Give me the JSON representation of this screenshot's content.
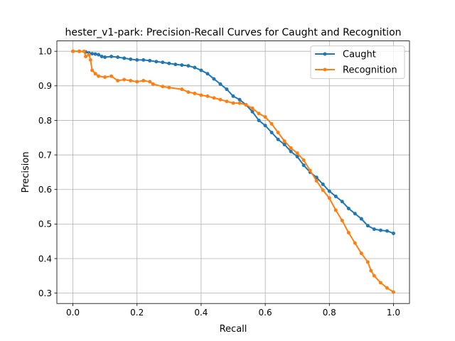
{
  "chart_data": {
    "type": "line",
    "title": "hester_v1-park: Precision-Recall Curves for Caught and Recognition",
    "xlabel": "Recall",
    "ylabel": "Precision",
    "xlim": [
      -0.05,
      1.05
    ],
    "ylim": [
      0.27,
      1.03
    ],
    "xticks": [
      0.0,
      0.2,
      0.4,
      0.6,
      0.8,
      1.0
    ],
    "xtick_labels": [
      "0.0",
      "0.2",
      "0.4",
      "0.6",
      "0.8",
      "1.0"
    ],
    "yticks": [
      0.3,
      0.4,
      0.5,
      0.6,
      0.7,
      0.8,
      0.9,
      1.0
    ],
    "ytick_labels": [
      "0.3",
      "0.4",
      "0.5",
      "0.6",
      "0.7",
      "0.8",
      "0.9",
      "1.0"
    ],
    "grid": true,
    "legend_position": "top-right",
    "series": [
      {
        "name": "Caught",
        "color": "#1f77b4",
        "marker": "circle",
        "points": [
          [
            0.0,
            1.0
          ],
          [
            0.02,
            1.0
          ],
          [
            0.04,
            0.998
          ],
          [
            0.05,
            0.995
          ],
          [
            0.06,
            0.993
          ],
          [
            0.07,
            0.992
          ],
          [
            0.08,
            0.99
          ],
          [
            0.09,
            0.985
          ],
          [
            0.1,
            0.983
          ],
          [
            0.12,
            0.985
          ],
          [
            0.14,
            0.983
          ],
          [
            0.16,
            0.98
          ],
          [
            0.18,
            0.977
          ],
          [
            0.2,
            0.975
          ],
          [
            0.22,
            0.975
          ],
          [
            0.24,
            0.973
          ],
          [
            0.26,
            0.97
          ],
          [
            0.28,
            0.968
          ],
          [
            0.3,
            0.965
          ],
          [
            0.32,
            0.962
          ],
          [
            0.34,
            0.96
          ],
          [
            0.36,
            0.958
          ],
          [
            0.38,
            0.953
          ],
          [
            0.4,
            0.945
          ],
          [
            0.42,
            0.935
          ],
          [
            0.44,
            0.92
          ],
          [
            0.46,
            0.905
          ],
          [
            0.48,
            0.89
          ],
          [
            0.5,
            0.87
          ],
          [
            0.52,
            0.86
          ],
          [
            0.54,
            0.845
          ],
          [
            0.56,
            0.825
          ],
          [
            0.58,
            0.8
          ],
          [
            0.6,
            0.785
          ],
          [
            0.62,
            0.765
          ],
          [
            0.64,
            0.745
          ],
          [
            0.66,
            0.73
          ],
          [
            0.68,
            0.71
          ],
          [
            0.7,
            0.695
          ],
          [
            0.72,
            0.67
          ],
          [
            0.74,
            0.65
          ],
          [
            0.76,
            0.635
          ],
          [
            0.78,
            0.615
          ],
          [
            0.8,
            0.595
          ],
          [
            0.82,
            0.58
          ],
          [
            0.84,
            0.565
          ],
          [
            0.86,
            0.545
          ],
          [
            0.88,
            0.53
          ],
          [
            0.9,
            0.515
          ],
          [
            0.92,
            0.495
          ],
          [
            0.94,
            0.485
          ],
          [
            0.96,
            0.482
          ],
          [
            0.98,
            0.48
          ],
          [
            1.0,
            0.473
          ]
        ]
      },
      {
        "name": "Recognition",
        "color": "#ff7f0e",
        "marker": "circle",
        "points": [
          [
            0.0,
            1.0
          ],
          [
            0.02,
            1.0
          ],
          [
            0.035,
            1.0
          ],
          [
            0.04,
            0.985
          ],
          [
            0.05,
            0.99
          ],
          [
            0.055,
            0.975
          ],
          [
            0.06,
            0.945
          ],
          [
            0.07,
            0.935
          ],
          [
            0.08,
            0.928
          ],
          [
            0.1,
            0.925
          ],
          [
            0.12,
            0.928
          ],
          [
            0.14,
            0.915
          ],
          [
            0.16,
            0.918
          ],
          [
            0.18,
            0.915
          ],
          [
            0.2,
            0.912
          ],
          [
            0.22,
            0.915
          ],
          [
            0.24,
            0.912
          ],
          [
            0.25,
            0.905
          ],
          [
            0.28,
            0.898
          ],
          [
            0.3,
            0.895
          ],
          [
            0.34,
            0.89
          ],
          [
            0.36,
            0.882
          ],
          [
            0.38,
            0.878
          ],
          [
            0.4,
            0.873
          ],
          [
            0.42,
            0.87
          ],
          [
            0.44,
            0.865
          ],
          [
            0.46,
            0.86
          ],
          [
            0.48,
            0.855
          ],
          [
            0.5,
            0.85
          ],
          [
            0.52,
            0.85
          ],
          [
            0.54,
            0.845
          ],
          [
            0.56,
            0.835
          ],
          [
            0.58,
            0.82
          ],
          [
            0.6,
            0.81
          ],
          [
            0.62,
            0.79
          ],
          [
            0.64,
            0.765
          ],
          [
            0.66,
            0.74
          ],
          [
            0.68,
            0.72
          ],
          [
            0.7,
            0.705
          ],
          [
            0.72,
            0.685
          ],
          [
            0.74,
            0.655
          ],
          [
            0.76,
            0.625
          ],
          [
            0.78,
            0.598
          ],
          [
            0.8,
            0.575
          ],
          [
            0.82,
            0.54
          ],
          [
            0.84,
            0.51
          ],
          [
            0.86,
            0.475
          ],
          [
            0.88,
            0.445
          ],
          [
            0.9,
            0.415
          ],
          [
            0.92,
            0.39
          ],
          [
            0.93,
            0.365
          ],
          [
            0.94,
            0.35
          ],
          [
            0.96,
            0.33
          ],
          [
            0.98,
            0.315
          ],
          [
            1.0,
            0.303
          ]
        ]
      }
    ]
  }
}
